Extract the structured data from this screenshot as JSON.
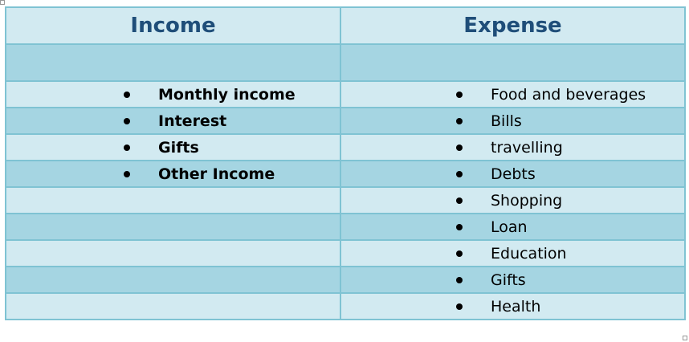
{
  "table": {
    "headers": [
      "Income",
      "Expense"
    ],
    "income_items": [
      "Monthly income",
      "Interest",
      "Gifts",
      "Other Income"
    ],
    "expense_items": [
      "Food and beverages",
      "Bills",
      "travelling",
      "Debts",
      "Shopping",
      "Loan",
      "Education",
      "Gifts",
      "Health"
    ]
  },
  "colors": {
    "header_row": "#d2eaf1",
    "light_row": "#d2eaf1",
    "dark_row": "#a5d5e2",
    "border": "#7fc3d3",
    "header_text": "#1f4e79"
  }
}
